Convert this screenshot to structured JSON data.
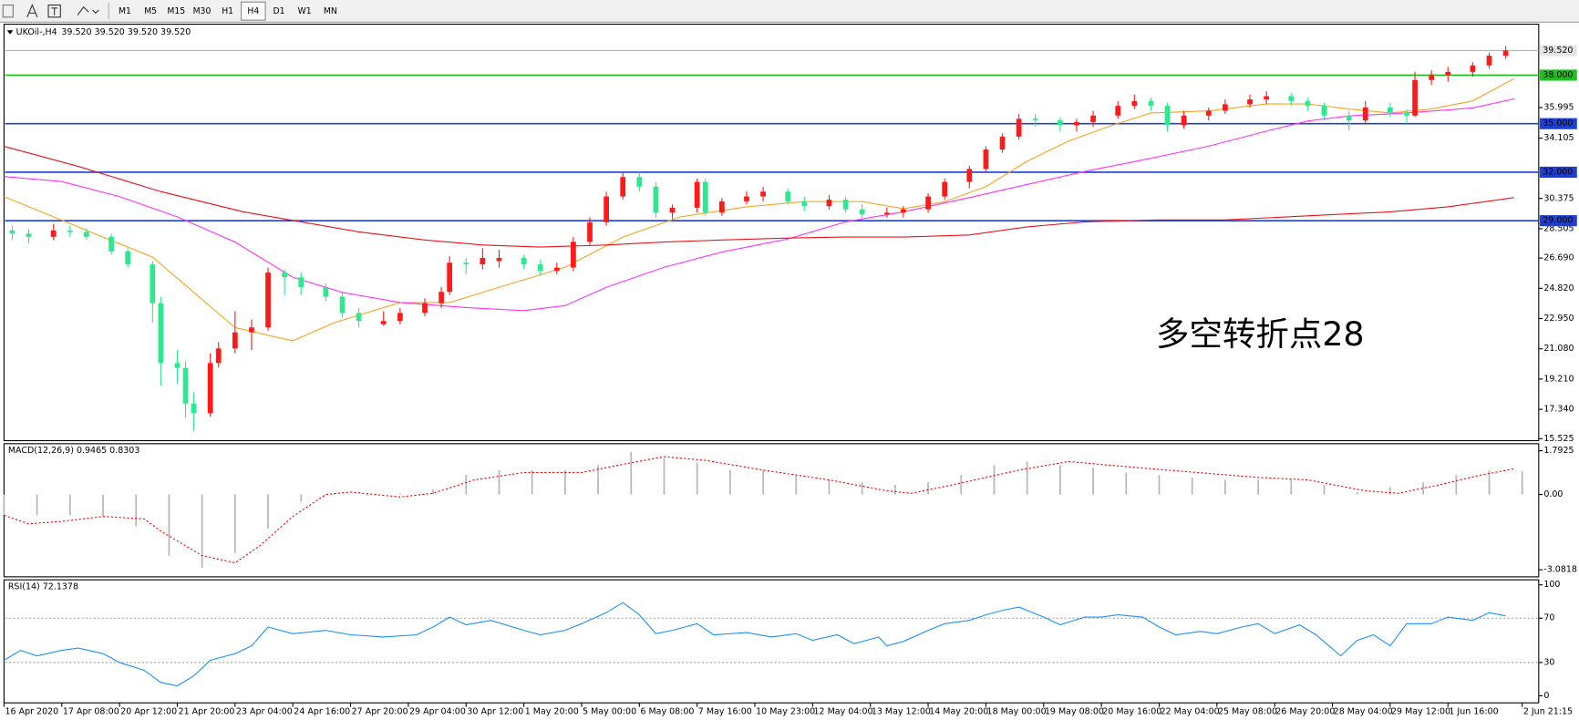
{
  "toolbar": {
    "timeframes": [
      "M1",
      "M5",
      "M15",
      "M30",
      "H1",
      "H4",
      "D1",
      "W1",
      "MN"
    ],
    "active": "H4"
  },
  "chart_data": [
    {
      "type": "candlestick",
      "title": "UKOil-,H4",
      "subtitle": "39.520 39.520 39.520 39.520",
      "x": [
        1,
        3,
        6,
        8,
        10,
        13,
        15,
        18,
        19,
        21,
        22,
        23,
        25,
        26,
        28,
        30,
        32,
        34,
        36,
        39,
        41,
        43,
        46,
        48,
        51,
        53,
        54,
        56,
        58,
        60,
        63,
        65,
        67,
        69,
        71,
        73,
        75,
        77,
        79,
        81,
        84,
        85,
        87,
        90,
        92,
        95,
        97,
        100,
        102,
        104,
        107,
        109,
        112,
        114,
        117,
        119,
        121,
        123,
        125,
        128,
        130,
        132,
        135,
        137,
        139,
        141,
        143,
        146,
        148,
        151,
        153,
        156,
        158,
        160,
        163,
        165,
        168,
        170,
        171,
        173,
        175,
        178,
        180,
        182
      ],
      "open": [
        28.4,
        28.2,
        28.0,
        28.4,
        28.3,
        28.0,
        27.1,
        26.3,
        23.9,
        20.2,
        19.9,
        17.7,
        17.1,
        20.2,
        21.1,
        22.1,
        22.4,
        25.8,
        25.5,
        24.9,
        24.3,
        23.3,
        22.6,
        22.8,
        23.3,
        23.9,
        24.6,
        26.4,
        26.3,
        26.5,
        26.7,
        26.3,
        25.9,
        26.1,
        27.7,
        28.9,
        30.5,
        31.7,
        31.1,
        29.5,
        29.8,
        31.4,
        29.5,
        30.2,
        30.5,
        30.8,
        30.2,
        29.9,
        30.3,
        29.7,
        29.4,
        29.5,
        29.7,
        30.5,
        31.4,
        32.2,
        33.4,
        34.2,
        35.3,
        35.2,
        34.9,
        35.1,
        35.5,
        36.1,
        36.4,
        36.1,
        34.9,
        35.5,
        35.8,
        36.2,
        36.5,
        36.7,
        36.4,
        36.1,
        35.5,
        35.2,
        36.0,
        35.7,
        35.5,
        37.7,
        38.0,
        38.2,
        38.6,
        39.2
      ],
      "high": [
        28.7,
        28.5,
        28.8,
        28.7,
        28.5,
        28.2,
        27.3,
        26.5,
        24.3,
        21.0,
        20.3,
        18.4,
        20.8,
        21.5,
        23.4,
        22.9,
        26.1,
        26.0,
        25.8,
        25.1,
        24.6,
        23.6,
        23.4,
        23.6,
        24.2,
        24.9,
        26.8,
        26.7,
        27.3,
        27.2,
        26.9,
        26.6,
        26.4,
        28.0,
        29.2,
        30.8,
        32.0,
        32.0,
        31.4,
        30.0,
        31.6,
        31.6,
        30.4,
        30.8,
        31.1,
        31.0,
        30.5,
        30.6,
        30.5,
        30.0,
        29.8,
        29.9,
        30.7,
        31.6,
        32.4,
        33.6,
        34.4,
        35.6,
        35.6,
        35.4,
        35.3,
        35.8,
        36.4,
        36.8,
        36.6,
        36.3,
        35.8,
        36.0,
        36.5,
        36.8,
        37.0,
        36.9,
        36.6,
        36.3,
        35.8,
        36.4,
        36.3,
        35.9,
        38.2,
        38.3,
        38.5,
        38.8,
        39.4,
        39.8
      ],
      "low": [
        27.8,
        27.6,
        27.8,
        28.0,
        27.8,
        26.9,
        26.1,
        22.7,
        18.8,
        18.9,
        16.8,
        16.0,
        16.9,
        19.9,
        20.8,
        21.0,
        22.2,
        24.4,
        24.4,
        24.0,
        23.0,
        22.4,
        22.5,
        22.6,
        23.1,
        23.6,
        24.4,
        25.7,
        26.0,
        26.1,
        26.0,
        25.6,
        25.7,
        25.9,
        27.5,
        28.7,
        30.3,
        30.8,
        29.2,
        29.1,
        29.5,
        29.3,
        29.3,
        30.0,
        30.2,
        30.0,
        29.6,
        29.7,
        29.5,
        29.1,
        29.2,
        29.2,
        29.5,
        30.3,
        31.0,
        32.0,
        33.2,
        34.0,
        34.8,
        34.5,
        34.5,
        34.8,
        35.3,
        35.9,
        35.8,
        34.5,
        34.7,
        35.2,
        35.6,
        36.0,
        36.2,
        36.1,
        35.8,
        35.2,
        34.6,
        35.0,
        35.4,
        35.0,
        35.4,
        37.4,
        37.6,
        37.9,
        38.4,
        39.0
      ],
      "close": [
        28.2,
        28.0,
        28.4,
        28.3,
        28.0,
        27.1,
        26.3,
        23.9,
        20.2,
        19.9,
        17.7,
        17.1,
        20.2,
        21.1,
        22.1,
        22.4,
        25.8,
        25.5,
        24.9,
        24.3,
        23.3,
        22.8,
        22.8,
        23.3,
        23.9,
        24.6,
        26.4,
        26.3,
        26.7,
        26.7,
        26.3,
        25.9,
        26.1,
        27.7,
        28.9,
        30.5,
        31.7,
        31.1,
        29.5,
        29.8,
        31.4,
        29.5,
        30.2,
        30.5,
        30.8,
        30.2,
        29.9,
        30.3,
        29.7,
        29.4,
        29.5,
        29.7,
        30.5,
        31.4,
        32.2,
        33.4,
        34.2,
        35.3,
        35.2,
        34.9,
        35.1,
        35.5,
        36.1,
        36.4,
        36.1,
        34.9,
        35.5,
        35.8,
        36.2,
        36.5,
        36.7,
        36.4,
        36.1,
        35.5,
        35.2,
        36.0,
        35.7,
        35.5,
        37.7,
        38.0,
        38.2,
        38.6,
        39.2,
        39.52
      ],
      "up_color": "#ff1a1a",
      "down_color": "#2ee88f",
      "series": [
        {
          "color": "#f5a623",
          "x": [
            0,
            6,
            12,
            18,
            23,
            28,
            35,
            40,
            48,
            54,
            60,
            68,
            75,
            82,
            90,
            97,
            104,
            109,
            114,
            119,
            124,
            129,
            134,
            139,
            146,
            153,
            158,
            163,
            168,
            173,
            178,
            183
          ],
          "values": [
            30.49,
            29.24,
            27.99,
            26.75,
            24.57,
            22.39,
            21.57,
            22.69,
            23.94,
            23.94,
            24.88,
            26.12,
            27.99,
            29.24,
            29.86,
            30.18,
            30.18,
            29.74,
            30.18,
            31.11,
            32.67,
            33.92,
            34.85,
            35.66,
            35.79,
            36.22,
            36.22,
            35.91,
            35.66,
            35.91,
            36.41,
            37.78
          ]
        },
        {
          "color": "#ff33ff",
          "x": [
            0,
            7,
            14,
            21,
            28,
            35,
            41,
            48,
            56,
            63,
            68,
            73,
            80,
            87,
            95,
            102,
            109,
            117,
            124,
            131,
            139,
            146,
            153,
            158,
            163,
            170,
            178,
            183
          ],
          "values": [
            31.73,
            31.42,
            30.49,
            29.24,
            27.68,
            25.5,
            24.57,
            23.94,
            23.63,
            23.44,
            23.75,
            24.88,
            26.12,
            27.06,
            27.87,
            28.93,
            29.55,
            30.43,
            31.24,
            32.05,
            32.86,
            33.61,
            34.54,
            35.16,
            35.48,
            35.66,
            35.97,
            36.53
          ]
        },
        {
          "color": "#e8141c",
          "x": [
            0,
            9,
            19,
            29,
            36,
            43,
            51,
            58,
            65,
            73,
            80,
            87,
            95,
            102,
            109,
            117,
            124,
            131,
            140,
            148,
            158,
            168,
            175,
            183
          ],
          "values": [
            33.6,
            32.36,
            30.8,
            29.55,
            28.93,
            28.31,
            27.81,
            27.5,
            27.37,
            27.5,
            27.68,
            27.81,
            27.93,
            27.99,
            27.99,
            28.12,
            28.62,
            28.93,
            29.05,
            29.05,
            29.3,
            29.55,
            29.86,
            30.43
          ]
        }
      ],
      "levels": [
        {
          "value": 39.52,
          "label": "39.520",
          "color": "#aab4cc",
          "box": "#e4e4e4",
          "text_color": "#000000"
        },
        {
          "value": 38,
          "label": "38.000",
          "color": "#19c419",
          "box": "#19c419",
          "text_color": "#ffffff"
        },
        {
          "value": 35,
          "label": "35.000",
          "color": "#1f3fd0",
          "box": "#1f3fd0",
          "text_color": "#ffffff"
        },
        {
          "value": 32,
          "label": "32.000",
          "color": "#1f3fd0",
          "box": "#1f3fd0",
          "text_color": "#ffffff"
        },
        {
          "value": 29,
          "label": "29.000",
          "color": "#1f3fd0",
          "box": "#1f3fd0",
          "text_color": "#ffffff"
        }
      ],
      "annotation": {
        "text": "多空转折点28",
        "color": "#e01818"
      },
      "xlim": [
        0,
        186
      ],
      "ylim": [
        15.4,
        41.15
      ],
      "yticks": [
        {
          "value": 15.525,
          "label": "15.525"
        },
        {
          "value": 17.34,
          "label": "17.340"
        },
        {
          "value": 19.21,
          "label": "19.210"
        },
        {
          "value": 21.08,
          "label": "21.080"
        },
        {
          "value": 22.95,
          "label": "22.950"
        },
        {
          "value": 24.82,
          "label": "24.820"
        },
        {
          "value": 26.69,
          "label": "26.690"
        },
        {
          "value": 28.505,
          "label": "28.505"
        },
        {
          "value": 30.375,
          "label": "30.375"
        },
        {
          "value": 34.105,
          "label": "34.105"
        },
        {
          "value": 35.995,
          "label": "35.995"
        }
      ],
      "xticks": [
        {
          "value": 0,
          "label": "16 Apr 2020"
        },
        {
          "value": 7,
          "label": "17 Apr 08:00"
        },
        {
          "value": 14,
          "label": "20 Apr 12:00"
        },
        {
          "value": 21,
          "label": "21 Apr 20:00"
        },
        {
          "value": 28,
          "label": "23 Apr 04:00"
        },
        {
          "value": 35,
          "label": "24 Apr 16:00"
        },
        {
          "value": 42,
          "label": "27 Apr 20:00"
        },
        {
          "value": 49,
          "label": "29 Apr 04:00"
        },
        {
          "value": 56,
          "label": "30 Apr 12:00"
        },
        {
          "value": 63,
          "label": "1 May 20:00"
        },
        {
          "value": 70,
          "label": "5 May 00:00"
        },
        {
          "value": 77,
          "label": "6 May 08:00"
        },
        {
          "value": 84,
          "label": "7 May 16:00"
        },
        {
          "value": 91,
          "label": "10 May 23:00"
        },
        {
          "value": 98,
          "label": "12 May 04:00"
        },
        {
          "value": 105,
          "label": "13 May 12:00"
        },
        {
          "value": 112,
          "label": "14 May 20:00"
        },
        {
          "value": 119,
          "label": "18 May 00:00"
        },
        {
          "value": 126,
          "label": "19 May 08:00"
        },
        {
          "value": 133,
          "label": "20 May 16:00"
        },
        {
          "value": 140,
          "label": "22 May 04:00"
        },
        {
          "value": 147,
          "label": "25 May 08:00"
        },
        {
          "value": 154,
          "label": "26 May 20:00"
        },
        {
          "value": 161,
          "label": "28 May 04:00"
        },
        {
          "value": 168,
          "label": "29 May 12:00"
        },
        {
          "value": 175,
          "label": "1 Jun 16:00"
        },
        {
          "value": 184,
          "label": "2 Jun 21:15"
        }
      ]
    },
    {
      "type": "macd",
      "title": "MACD(12,26,9) 0.9465 0.8303",
      "xlim": [
        0,
        186
      ],
      "ylim": [
        -3.0818,
        1.7925
      ],
      "yticks": [
        1.7925,
        {
          "value": 0,
          "label": "0.00"
        },
        -3.0818
      ],
      "histogram": {
        "color": "#b8b8b8",
        "x": [
          0,
          4,
          8,
          12,
          16,
          20,
          24,
          28,
          32,
          36,
          40,
          44,
          48,
          52,
          56,
          60,
          64,
          68,
          72,
          76,
          80,
          84,
          88,
          92,
          96,
          100,
          104,
          108,
          112,
          116,
          120,
          124,
          128,
          132,
          136,
          140,
          144,
          148,
          152,
          156,
          160,
          164,
          168,
          172,
          176,
          180,
          184
        ],
        "values": [
          -0.85,
          -0.85,
          -0.85,
          -0.9,
          -1.3,
          -2.5,
          -3.0,
          -2.4,
          -1.4,
          -0.3,
          0.05,
          -0.05,
          0.05,
          0.2,
          0.8,
          1.0,
          1.0,
          1.0,
          1.2,
          1.75,
          1.5,
          1.3,
          1.0,
          1.0,
          0.8,
          0.6,
          0.5,
          0.4,
          0.5,
          0.8,
          1.2,
          1.35,
          1.2,
          1.1,
          0.9,
          0.8,
          0.7,
          0.6,
          0.6,
          0.6,
          0.4,
          0.1,
          0.3,
          0.5,
          0.8,
          1.0,
          0.95
        ]
      },
      "signal": {
        "color": "#ff0000",
        "x": [
          0,
          3,
          7,
          12,
          17,
          19,
          24,
          28,
          31,
          35,
          39,
          42,
          48,
          52,
          57,
          63,
          70,
          76,
          80,
          85,
          92,
          100,
          107,
          110,
          115,
          123,
          129,
          134,
          141,
          152,
          158,
          165,
          169,
          174,
          179,
          183
        ],
        "values": [
          -0.85,
          -1.2,
          -1.1,
          -0.9,
          -1.0,
          -1.5,
          -2.5,
          -2.8,
          -2.1,
          -0.9,
          0,
          0.1,
          -0.1,
          0.05,
          0.6,
          0.9,
          0.9,
          1.3,
          1.55,
          1.4,
          1.0,
          0.6,
          0.15,
          0.05,
          0.4,
          1.0,
          1.35,
          1.2,
          1.0,
          0.7,
          0.6,
          0.15,
          0.05,
          0.4,
          0.8,
          1.05
        ]
      }
    },
    {
      "type": "line",
      "title": "RSI(14) 72.1378",
      "xlim": [
        0,
        186
      ],
      "ylim": [
        0,
        100
      ],
      "yticks": [
        100,
        70,
        30,
        0
      ],
      "levels": [
        70,
        30
      ],
      "color": "#1e90ff",
      "x": [
        0,
        2,
        4,
        7,
        9,
        12,
        14,
        17,
        19,
        21,
        23,
        25,
        28,
        30,
        32,
        35,
        39,
        42,
        46,
        50,
        52,
        54,
        56,
        59,
        63,
        65,
        68,
        70,
        73,
        75,
        77,
        79,
        81,
        84,
        86,
        90,
        93,
        96,
        98,
        101,
        103,
        106,
        107,
        109,
        112,
        114,
        117,
        119,
        121,
        123,
        126,
        128,
        131,
        133,
        135,
        138,
        140,
        142,
        145,
        147,
        150,
        152,
        154,
        157,
        159,
        162,
        164,
        166,
        168,
        170,
        173,
        175,
        178,
        180,
        182
      ],
      "values": [
        32,
        41,
        36,
        41,
        43,
        38,
        30,
        23,
        12,
        9,
        18,
        32,
        38,
        45,
        62,
        56,
        59,
        55,
        53,
        55,
        62,
        71,
        64,
        68,
        59,
        55,
        59,
        65,
        75,
        84,
        73,
        56,
        59,
        65,
        55,
        57,
        53,
        56,
        50,
        55,
        47,
        53,
        45,
        49,
        59,
        65,
        68,
        73,
        77,
        80,
        71,
        64,
        71,
        71,
        73,
        71,
        62,
        55,
        58,
        56,
        62,
        65,
        56,
        64,
        55,
        36,
        50,
        55,
        45,
        65,
        65,
        71,
        68,
        75,
        72
      ]
    }
  ]
}
